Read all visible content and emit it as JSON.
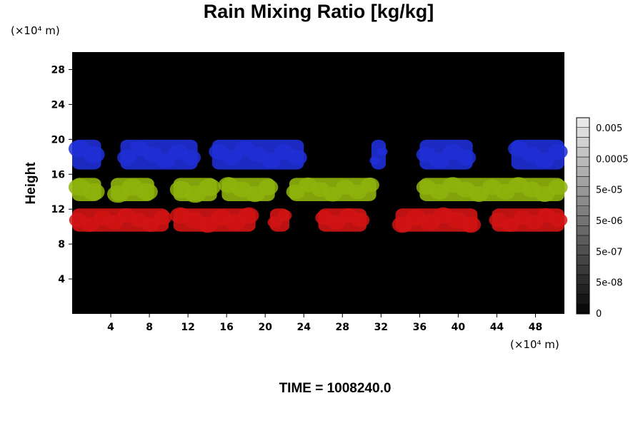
{
  "chart_data": {
    "type": "heatmap",
    "title": "Rain Mixing Ratio [kg/kg]",
    "ylabel": "Height",
    "x_unit": "(×10⁴ m)",
    "y_unit": "(×10⁴ m)",
    "xlim": [
      0,
      51
    ],
    "ylim": [
      0,
      30
    ],
    "x_ticks": [
      4,
      8,
      12,
      16,
      20,
      24,
      28,
      32,
      36,
      40,
      44,
      48
    ],
    "y_ticks": [
      4,
      8,
      12,
      16,
      20,
      24,
      28
    ],
    "background": "#000000",
    "colorbar": {
      "tick_labels": [
        "0",
        "5e-08",
        "5e-07",
        "5e-06",
        "5e-05",
        "0.0005",
        "0.005"
      ],
      "range": [
        0,
        0.005
      ]
    },
    "layers": [
      {
        "color": "#1f2fd6",
        "y_range": [
          16,
          20.5
        ],
        "segments": [
          [
            0,
            3
          ],
          [
            5,
            13
          ],
          [
            14.5,
            24
          ],
          [
            31,
            32.5
          ],
          [
            36,
            41.5
          ],
          [
            45.5,
            51
          ]
        ]
      },
      {
        "color": "#8fb40c",
        "y_range": [
          12.5,
          16
        ],
        "segments": [
          [
            0,
            3
          ],
          [
            4,
            8.5
          ],
          [
            10.5,
            15
          ],
          [
            15.5,
            21
          ],
          [
            22.5,
            31.5
          ],
          [
            36,
            51
          ]
        ]
      },
      {
        "color": "#d21414",
        "y_range": [
          9,
          12.5
        ],
        "segments": [
          [
            0,
            10
          ],
          [
            10.5,
            19
          ],
          [
            20.5,
            22.5
          ],
          [
            25.5,
            30.5
          ],
          [
            33.5,
            42
          ],
          [
            43.5,
            51
          ]
        ]
      }
    ],
    "annotation": "TIME = 1008240.0"
  }
}
